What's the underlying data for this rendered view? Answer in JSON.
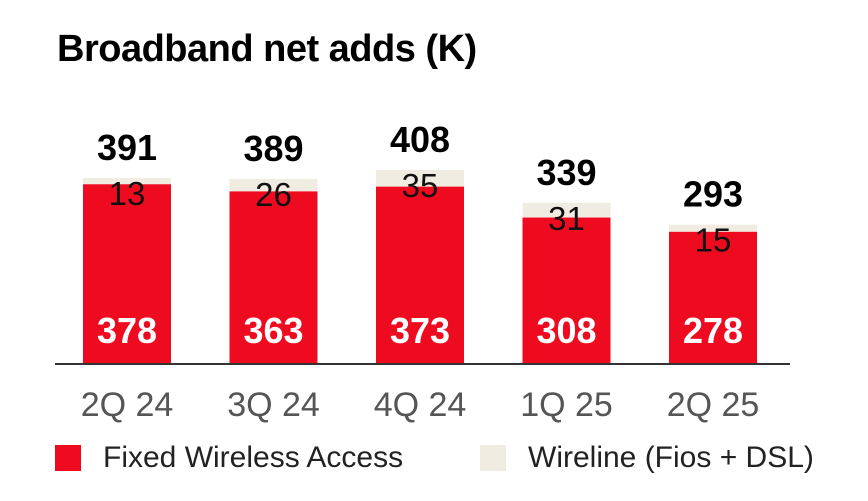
{
  "colors": {
    "fixed_wireless": "#ee0b1f",
    "wireline": "#f1ece1",
    "total_label": "#000000",
    "wireline_label": "#111111",
    "fwa_label": "#ffffff",
    "axis": "#333333",
    "category_label": "#555555"
  },
  "chart_data": {
    "type": "bar",
    "stacked": true,
    "title": "Broadband net adds (K)",
    "categories": [
      "2Q 24",
      "3Q 24",
      "4Q 24",
      "1Q 25",
      "2Q 25"
    ],
    "series": [
      {
        "name": "Fixed Wireless Access",
        "values": [
          378,
          363,
          373,
          308,
          278
        ]
      },
      {
        "name": "Wireline (Fios + DSL)",
        "values": [
          13,
          26,
          35,
          31,
          15
        ]
      }
    ],
    "totals": [
      391,
      389,
      408,
      339,
      293
    ],
    "ylim": [
      0,
      408
    ],
    "grid": false,
    "legend_position": "bottom"
  }
}
